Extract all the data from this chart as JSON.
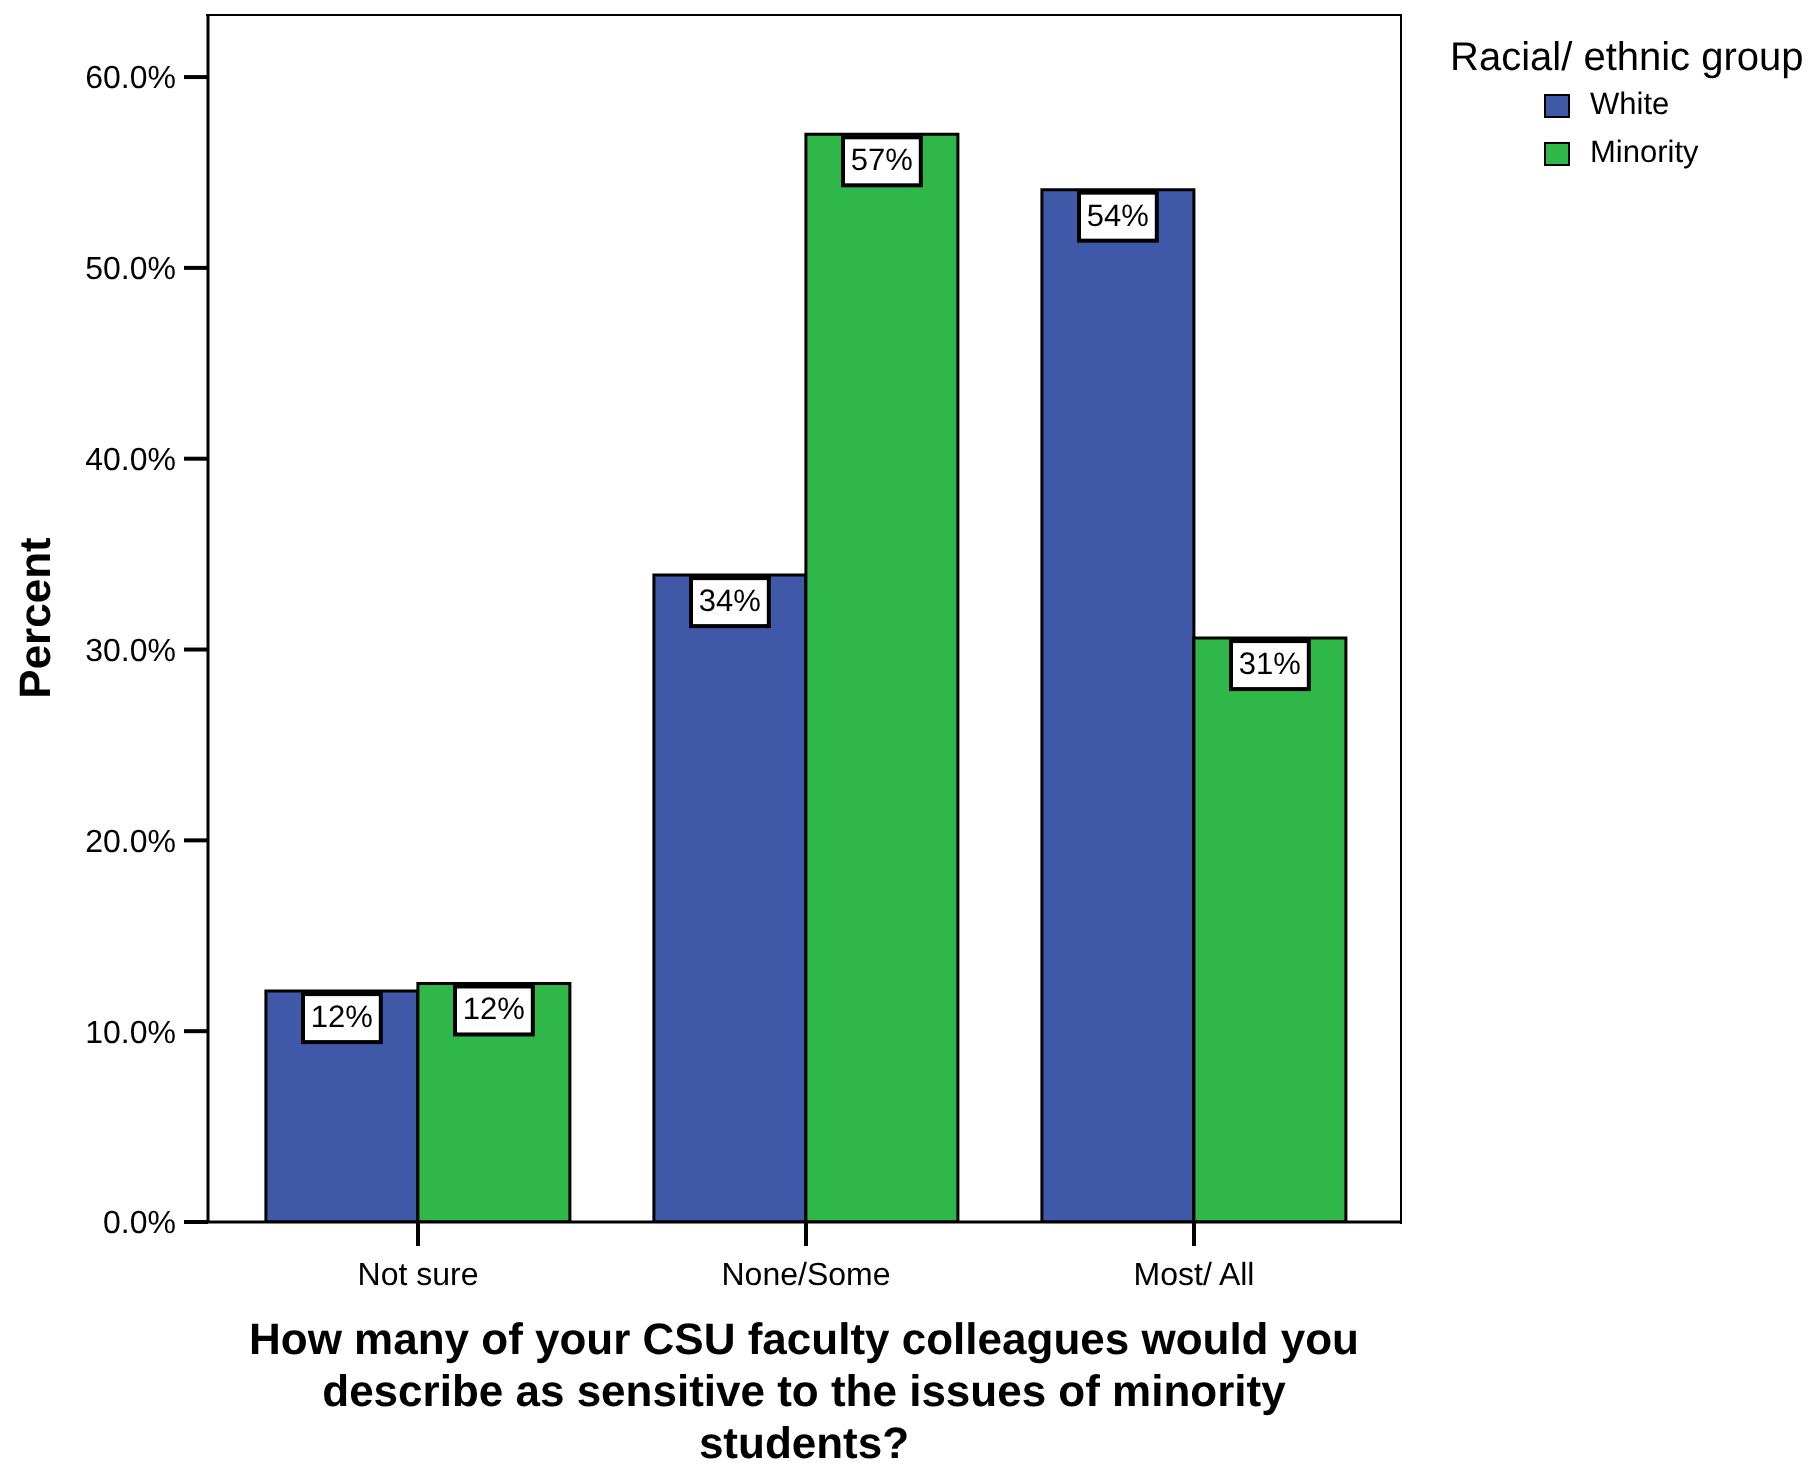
{
  "chart_data": {
    "type": "bar",
    "xlabel": "How many of your CSU faculty colleagues would you describe as sensitive to the issues of minority students?",
    "ylabel": "Percent",
    "legend_title": "Racial/ ethnic group",
    "legend": "top right",
    "categories": [
      "Not sure",
      "None/Some",
      "Most/ All"
    ],
    "series": [
      {
        "name": "White",
        "color": "#3f58a8",
        "values": [
          12.1,
          33.9,
          54.1
        ],
        "value_labels": [
          "12%",
          "34%",
          "54%"
        ]
      },
      {
        "name": "Minority",
        "color": "#30b74a",
        "values": [
          12.5,
          57.0,
          30.6
        ],
        "value_labels": [
          "12%",
          "57%",
          "31%"
        ]
      }
    ],
    "ylim": [
      0,
      63.2
    ],
    "yticks": [
      {
        "value": 0,
        "label": "0.0%"
      },
      {
        "value": 10,
        "label": "10.0%"
      },
      {
        "value": 20,
        "label": "20.0%"
      },
      {
        "value": 30,
        "label": "30.0%"
      },
      {
        "value": 40,
        "label": "40.0%"
      },
      {
        "value": 50,
        "label": "50.0%"
      },
      {
        "value": 60,
        "label": "60.0%"
      }
    ]
  }
}
